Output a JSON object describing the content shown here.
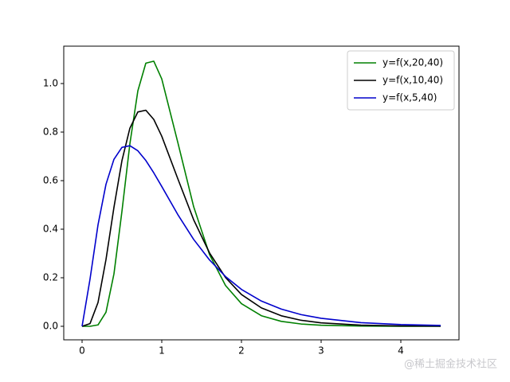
{
  "chart_data": {
    "type": "line",
    "x": [
      0,
      0.1,
      0.2,
      0.3,
      0.4,
      0.5,
      0.6,
      0.7,
      0.8,
      0.9,
      1.0,
      1.2,
      1.4,
      1.6,
      1.8,
      2.0,
      2.25,
      2.5,
      2.75,
      3.0,
      3.5,
      4.0,
      4.5
    ],
    "series": [
      {
        "name": "y=f(x,20,40)",
        "color": "#008000",
        "values": [
          0,
          5e-05,
          0.0057,
          0.058,
          0.216,
          0.473,
          0.752,
          0.97,
          1.084,
          1.092,
          1.019,
          0.759,
          0.493,
          0.295,
          0.168,
          0.0932,
          0.0436,
          0.0203,
          0.0094,
          0.0044,
          0.001,
          0.00025,
          6.5e-05
        ]
      },
      {
        "name": "y=f(x,10,40)",
        "color": "#000000",
        "values": [
          0,
          0.0112,
          0.098,
          0.275,
          0.49,
          0.682,
          0.816,
          0.883,
          0.89,
          0.852,
          0.783,
          0.609,
          0.439,
          0.302,
          0.201,
          0.131,
          0.0758,
          0.0433,
          0.0247,
          0.0141,
          0.00466,
          0.00158,
          0.00056
        ]
      },
      {
        "name": "y=f(x,5,40)",
        "color": "#0000cc",
        "values": [
          0,
          0.195,
          0.418,
          0.585,
          0.688,
          0.737,
          0.744,
          0.723,
          0.683,
          0.632,
          0.576,
          0.461,
          0.358,
          0.273,
          0.205,
          0.152,
          0.104,
          0.071,
          0.048,
          0.033,
          0.015,
          0.0071,
          0.0034
        ]
      }
    ],
    "xlim": [
      -0.23,
      4.73
    ],
    "ylim": [
      -0.0557,
      1.154
    ],
    "xticks": [
      0,
      1,
      2,
      3,
      4
    ],
    "yticks": [
      {
        "value": 0,
        "label": "0.0"
      },
      {
        "value": 0.2,
        "label": "0.2"
      },
      {
        "value": 0.4,
        "label": "0.4"
      },
      {
        "value": 0.6,
        "label": "0.6"
      },
      {
        "value": 0.8,
        "label": "0.8"
      },
      {
        "value": 1.0,
        "label": "1.0"
      }
    ],
    "legend": "upper-right",
    "watermark": "@稀土掘金技术社区"
  }
}
